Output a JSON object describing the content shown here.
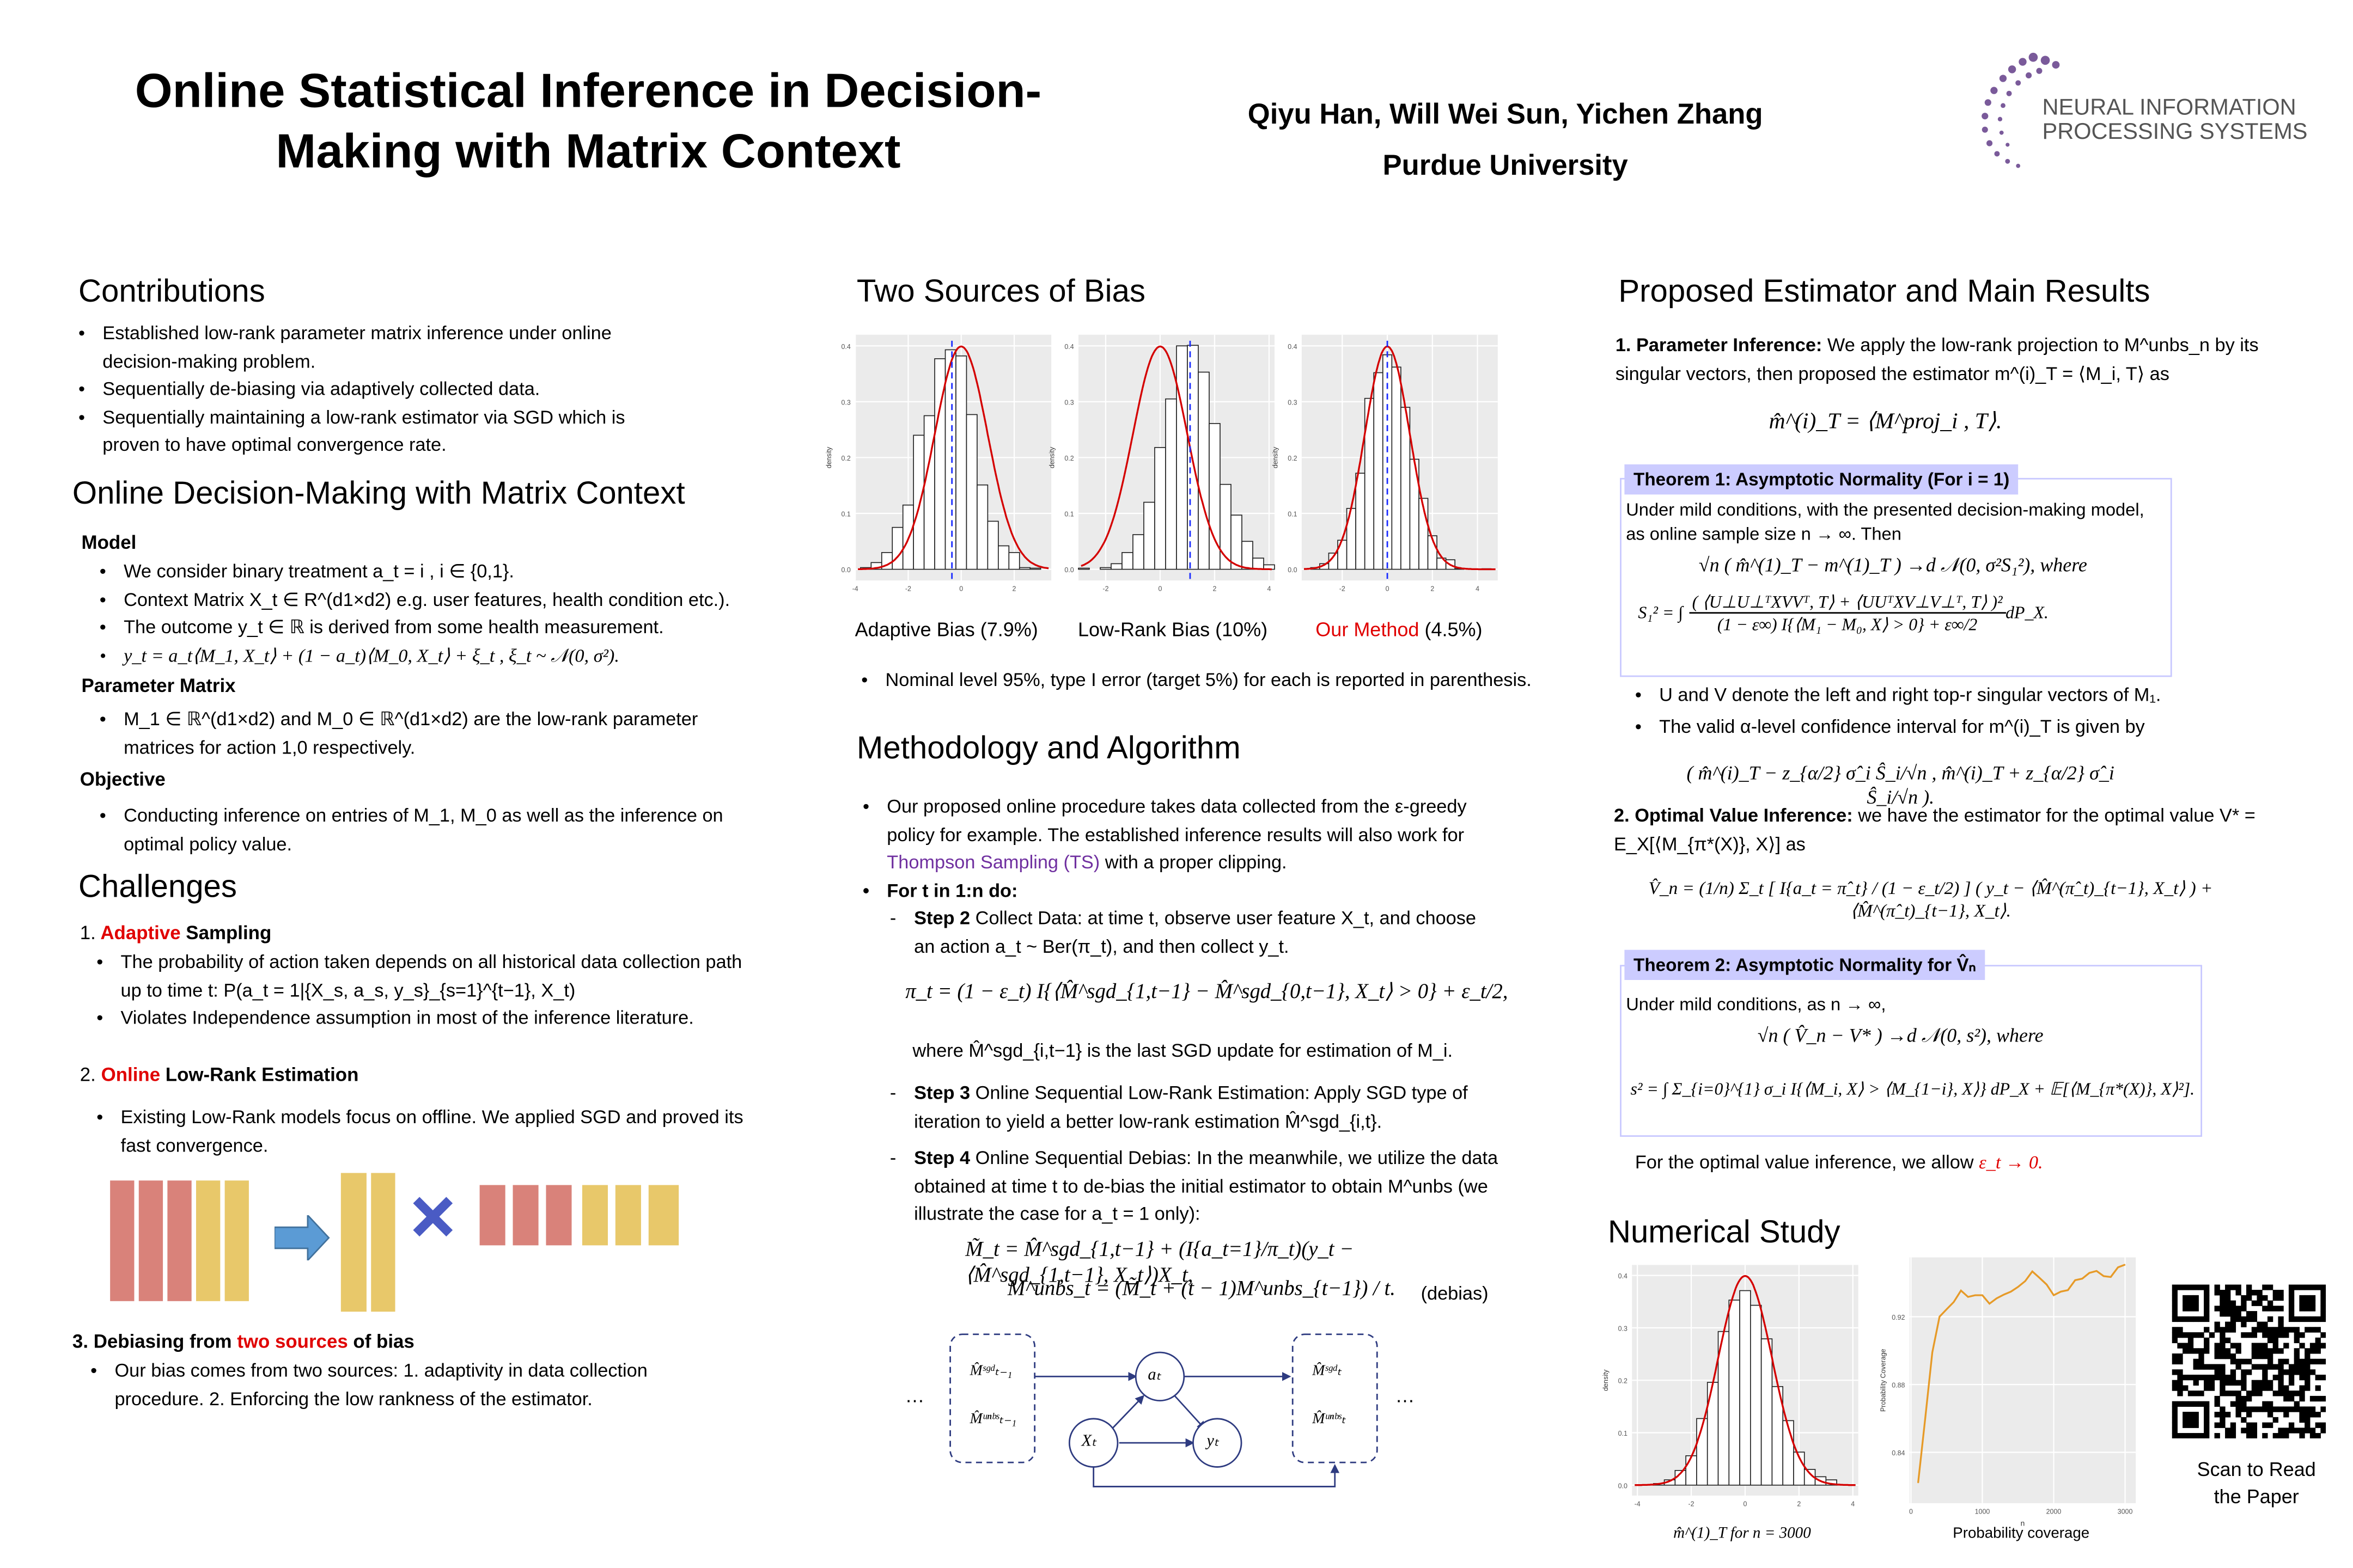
{
  "header": {
    "title_line1": "Online Statistical Inference in Decision-",
    "title_line2": "Making with Matrix Context",
    "authors": "Qiyu Han, Will Wei Sun, Yichen Zhang",
    "affiliation": "Purdue University",
    "logo_line1": "NEURAL INFORMATION",
    "logo_line2": "PROCESSING SYSTEMS"
  },
  "contributions": {
    "heading": "Contributions",
    "items": [
      "Established low-rank parameter matrix inference under online decision-making problem.",
      "Sequentially de-biasing via adaptively collected data.",
      "Sequentially maintaining a low-rank estimator via SGD which is proven to have optimal convergence rate."
    ]
  },
  "online": {
    "heading": "Online Decision-Making with Matrix Context",
    "model_label": "Model",
    "model_items": [
      "We consider binary treatment a_t = i , i ∈ {0,1}.",
      "Context Matrix X_t ∈ R^(d1×d2) e.g. user features, health condition etc.).",
      "The outcome y_t ∈ ℝ is derived from some health measurement.",
      "y_t = a_t⟨M_1, X_t⟩ + (1 − a_t)⟨M_0, X_t⟩ + ξ_t , ξ_t ~ 𝒩(0, σ²)."
    ],
    "param_label": "Parameter Matrix",
    "param_items": [
      "M_1 ∈ ℝ^(d1×d2) and M_0 ∈ ℝ^(d1×d2) are the low-rank parameter matrices for action 1,0 respectively."
    ],
    "objective_label": "Objective",
    "objective_items": [
      "Conducting inference on entries of M_1, M_0 as well as the inference on optimal policy value."
    ]
  },
  "challenges": {
    "heading": "Challenges",
    "c1_num": "1.",
    "c1_red": "Adaptive",
    "c1_rest": "Sampling",
    "c1_items": [
      "The probability of action taken depends on all historical data collection path up to time t: P(a_t = 1|{X_s, a_s, y_s}_{s=1}^{t−1}, X_t)",
      "Violates Independence assumption in most of the inference literature."
    ],
    "c2_num": "2.",
    "c2_red": "Online",
    "c2_rest": "Low-Rank Estimation",
    "c2_items": [
      "Existing Low-Rank models focus on offline. We applied SGD and proved its fast convergence."
    ],
    "c3_pre": "3. Debiasing from",
    "c3_red": "two sources",
    "c3_post": "of bias",
    "c3_items": [
      "Our bias comes from two sources: 1. adaptivity in data collection procedure. 2. Enforcing the low rankness of the estimator."
    ]
  },
  "bias": {
    "heading": "Two Sources of Bias",
    "cap1": "Adaptive Bias (7.9%)",
    "cap2": "Low-Rank Bias (10%)",
    "cap3_red": "Our Method",
    "cap3_rest": "(4.5%)",
    "note": "Nominal level 95%, type I error (target 5%) for each is reported in parenthesis."
  },
  "method": {
    "heading": "Methodology and Algorithm",
    "p1_a": "Our proposed online procedure takes data collected from the ε-greedy policy for example. The established inference results will also work for",
    "p1_link": "Thompson Sampling (TS)",
    "p1_b": "with a proper clipping.",
    "loop": "For t in 1:n do:",
    "step2_label": "Step 2",
    "step2_text": "Collect Data: at time t, observe user feature X_t, and choose an action a_t ~ Ber(π_t), and then collect y_t.",
    "step2_eq": "π_t = (1 − ε_t) I{⟨M̂^sgd_{1,t−1} − M̂^sgd_{0,t−1}, X_t⟩ > 0} + ε_t/2,",
    "step2_where": "where M̂^sgd_{i,t−1} is the last SGD update for estimation of M_i.",
    "step3_label": "Step 3",
    "step3_text": "Online Sequential Low-Rank Estimation: Apply SGD type of iteration to yield a better low-rank estimation M̂^sgd_{i,t}.",
    "step4_label": "Step 4",
    "step4_text": "Online Sequential Debias: In the meanwhile, we utilize the data obtained at time t to de-bias the initial estimator to obtain M^unbs (we illustrate the case for a_t = 1 only):",
    "eq1": "M̃_t = M̂^sgd_{1,t−1} + (I{a_t=1}/π_t)(y_t − ⟨M̂^sgd_{1,t−1}, X_t⟩)X_t,",
    "eq2": "M^unbs_t = (M̃_t + (t − 1)M^unbs_{t−1}) / t.",
    "eq_tag": "(debias)",
    "diagram": {
      "left_top": "M̂ˢᵍᵈₜ₋₁",
      "left_bot": "M̂ᵘⁿᵇˢₜ₋₁",
      "right_top": "M̂ˢᵍᵈₜ",
      "right_bot": "M̂ᵘⁿᵇˢₜ",
      "node_a": "aₜ",
      "node_x": "Xₜ",
      "node_y": "yₜ",
      "ellipsis": "…"
    }
  },
  "results": {
    "heading": "Proposed Estimator and Main Results",
    "p1_label": "1. Parameter Inference:",
    "p1_text": "We apply the low-rank projection to M^unbs_n by its singular vectors, then proposed the estimator m^(i)_T = ⟨M_i, T⟩ as",
    "p1_eq": "m̂^(i)_T = ⟨M^proj_i , T⟩.",
    "th1_head": "Theorem 1: Asymptotic Normality (For i = 1)",
    "th1_text": "Under mild conditions, with the presented decision-making model, as online sample size n → ∞. Then",
    "th1_eq1": "√n ( m̂^(1)_T − m^(1)_T ) →d 𝒩(0, σ²S₁²), where",
    "th1_eq2_lhs": "S₁² = ∫",
    "th1_eq2_num": "( ⟨U⊥U⊥ᵀXVVᵀ, T⟩ + ⟨UUᵀXV⊥V⊥ᵀ, T⟩ )²",
    "th1_eq2_den": "(1 − ε∞) I{⟨M₁ − M₀, X⟩ > 0} + ε∞/2",
    "th1_eq2_rhs": "dP_X.",
    "b1": "U and V denote the left and right top-r singular vectors of M₁.",
    "b2": "The valid α-level confidence interval for m^(i)_T is given by",
    "ci_eq": "( m̂^(i)_T − z_{α/2} σ̂_i Ŝ_i/√n , m̂^(i)_T + z_{α/2} σ̂_i Ŝ_i/√n ).",
    "p2_label": "2. Optimal Value Inference:",
    "p2_text": "we have the estimator for the optimal value V* = E_X[⟨M_{π*(X)}, X⟩] as",
    "p2_eq": "V̂_n = (1/n) Σ_t [ I{a_t = π̂_t} / (1 − ε_t/2) ] ( y_t − ⟨M̂^(π̂_t)_{t−1}, X_t⟩ ) + ⟨M̂^(π̂_t)_{t−1}, X_t⟩.",
    "th2_head": "Theorem 2: Asymptotic Normality for V̂ₙ",
    "th2_text": "Under mild conditions, as n → ∞,",
    "th2_eq1": "√n ( V̂_n − V* ) →d 𝒩(0, s²), where",
    "th2_eq2": "s² = ∫ Σ_{i=0}^{1} σ_i I{⟨M_i, X⟩ > ⟨M_{1−i}, X⟩} dP_X + 𝔼[⟨M_{π*(X)}, X⟩²].",
    "b3_a": "For the optimal value inference, we allow",
    "b3_red": "ε_t → 0."
  },
  "numerical": {
    "heading": "Numerical Study",
    "cap_hist": "m̂^(1)_T for n = 3000",
    "cap_line": "Probability coverage",
    "qr_line1": "Scan to Read",
    "qr_line2": "the Paper"
  },
  "chart_data": [
    {
      "type": "bar",
      "title": "Adaptive Bias",
      "xlabel": "",
      "ylabel": "density",
      "bin_start": -3.8,
      "bin_width": 0.4,
      "values": [
        0.003,
        0.012,
        0.03,
        0.075,
        0.115,
        0.24,
        0.275,
        0.377,
        0.393,
        0.382,
        0.277,
        0.151,
        0.086,
        0.042,
        0.03,
        0.003,
        0.002
      ],
      "xlim": [
        -4,
        3.4
      ],
      "ylim": [
        -0.02,
        0.42
      ],
      "xticks": [
        "-4",
        "-2",
        "0",
        "2"
      ],
      "yticks": [
        "0.0",
        "0.1",
        "0.2",
        "0.3",
        "0.4"
      ],
      "normal_mean": 0,
      "dashed_line_x": -0.35,
      "grid": true
    },
    {
      "type": "bar",
      "title": "Low-Rank Bias",
      "xlabel": "",
      "ylabel": "density",
      "bin_start": -3.0,
      "bin_width": 0.4,
      "values": [
        0.002,
        0.0,
        0.003,
        0.01,
        0.03,
        0.062,
        0.12,
        0.218,
        0.305,
        0.4,
        0.401,
        0.353,
        0.261,
        0.152,
        0.097,
        0.05,
        0.02,
        0.008
      ],
      "xlim": [
        -3,
        4.2
      ],
      "ylim": [
        -0.02,
        0.42
      ],
      "xticks": [
        "-2",
        "0",
        "2",
        "4"
      ],
      "yticks": [
        "0.0",
        "0.1",
        "0.2",
        "0.3",
        "0.4"
      ],
      "normal_mean": 0,
      "dashed_line_x": 1.1,
      "grid": true
    },
    {
      "type": "bar",
      "title": "Our Method",
      "xlabel": "",
      "ylabel": "density",
      "bin_start": -3.4,
      "bin_width": 0.4,
      "values": [
        0.003,
        0.01,
        0.029,
        0.052,
        0.109,
        0.172,
        0.306,
        0.352,
        0.384,
        0.362,
        0.29,
        0.197,
        0.127,
        0.06,
        0.02,
        0.017,
        0.001,
        0.0,
        0.0,
        0.001
      ],
      "xlim": [
        -3.8,
        4.9
      ],
      "ylim": [
        -0.02,
        0.42
      ],
      "xticks": [
        "-2",
        "0",
        "2",
        "4"
      ],
      "yticks": [
        "0.0",
        "0.1",
        "0.2",
        "0.3",
        "0.4"
      ],
      "normal_mean": 0,
      "dashed_line_x": 0,
      "grid": true
    },
    {
      "type": "bar",
      "title": "m̂(1)T for n = 3000",
      "xlabel": "",
      "ylabel": "density",
      "bin_start": -3.8,
      "bin_width": 0.4,
      "values": [
        0.001,
        0.003,
        0.01,
        0.028,
        0.056,
        0.127,
        0.196,
        0.293,
        0.353,
        0.371,
        0.343,
        0.279,
        0.188,
        0.123,
        0.063,
        0.03,
        0.016,
        0.01,
        0.001
      ],
      "xlim": [
        -4.2,
        4.2
      ],
      "ylim": [
        -0.02,
        0.42
      ],
      "xticks": [
        "-4",
        "-2",
        "0",
        "2",
        "4"
      ],
      "yticks": [
        "0.0",
        "0.1",
        "0.2",
        "0.3",
        "0.4"
      ],
      "normal_mean": 0,
      "grid": true
    },
    {
      "type": "line",
      "title": "Probability coverage",
      "xlabel": "n",
      "ylabel": "Probability Coverage",
      "x": [
        100,
        200,
        300,
        400,
        500,
        600,
        700,
        800,
        900,
        1000,
        1100,
        1200,
        1300,
        1400,
        1500,
        1600,
        1700,
        1800,
        1900,
        2000,
        2100,
        2200,
        2300,
        2400,
        2500,
        2600,
        2700,
        2800,
        2900,
        3000
      ],
      "y": [
        0.822,
        0.86,
        0.899,
        0.92,
        0.9244,
        0.9287,
        0.9354,
        0.9317,
        0.9327,
        0.9327,
        0.9277,
        0.9308,
        0.933,
        0.9348,
        0.9376,
        0.941,
        0.9467,
        0.943,
        0.939,
        0.9327,
        0.9348,
        0.9357,
        0.9416,
        0.9425,
        0.9458,
        0.947,
        0.944,
        0.9434,
        0.9491,
        0.9507
      ],
      "xlim": [
        -20,
        3150
      ],
      "ylim": [
        0.81,
        0.955
      ],
      "xticks": [
        "0",
        "1000",
        "2000",
        "3000"
      ],
      "yticks": [
        "0.84",
        "0.88",
        "0.92"
      ],
      "color": "#e69a28",
      "grid": true
    }
  ],
  "colors": {
    "accent_red": "#e00000",
    "link_purple": "#7030a0",
    "theorem_fill": "#ccccff",
    "bar_red": "#d9827a",
    "bar_yellow": "#e8c86a",
    "arrow_blue": "#5b9bd5",
    "cross_blue": "#4a5bc4",
    "line_orange": "#e69a28"
  }
}
